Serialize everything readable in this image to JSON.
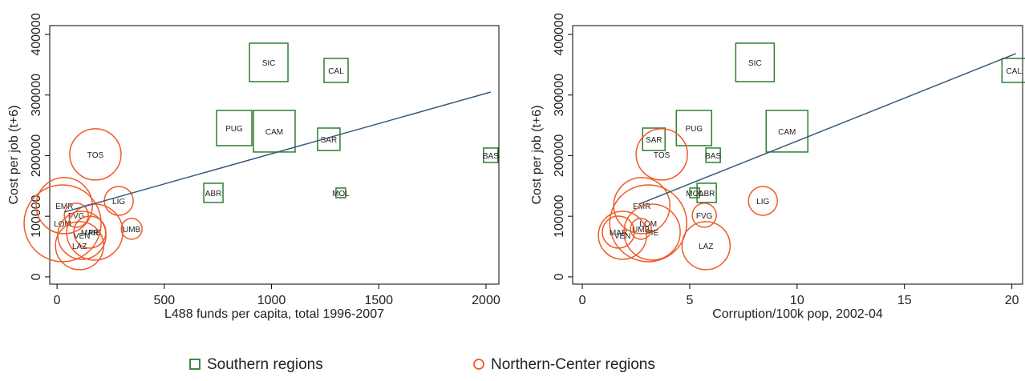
{
  "chart_data": [
    {
      "type": "scatter",
      "x_label": "L488 funds per capita, total 1996-2007",
      "y_label": "Cost per job (t+6)",
      "xlim": [
        -34,
        2060
      ],
      "ylim": [
        -12000,
        414500
      ],
      "xticks": [
        0,
        500,
        1000,
        1500,
        2000
      ],
      "yticks": [
        0,
        100000,
        200000,
        300000,
        400000
      ],
      "series": [
        {
          "name": "Southern regions",
          "color": "#2e7d32",
          "marker": "square",
          "labels": [
            "SIC",
            "CAL",
            "PUG",
            "CAM",
            "SAR",
            "BAS",
            "ABR",
            "MOL"
          ],
          "x": [
            987,
            1301,
            826,
            1013,
            1267,
            2022,
            729,
            1323
          ],
          "values": [
            353800,
            340600,
            245500,
            240300,
            227000,
            200700,
            138600,
            138600
          ],
          "sizes": [
            24,
            15,
            22,
            26,
            14,
            9,
            12,
            6
          ]
        },
        {
          "name": "Northern-Center regions",
          "color": "#f05a28",
          "marker": "circle",
          "labels": [
            "TOS",
            "LIG",
            "EMR",
            "FVG",
            "LOM",
            "UMB",
            "MAR",
            "PIE",
            "VEN",
            "LAZ"
          ],
          "x": [
            179,
            288,
            34,
            90,
            26,
            348,
            153,
            176,
            116,
            105
          ],
          "values": [
            202000,
            125400,
            117500,
            101700,
            88400,
            79200,
            73900,
            73900,
            68600,
            51500
          ],
          "sizes": [
            32,
            18,
            35,
            15,
            48,
            13,
            20,
            35,
            30,
            30
          ]
        }
      ],
      "fit": {
        "color": "#3b5a7a",
        "x": [
          34,
          2022
        ],
        "values": [
          106900,
          304900
        ]
      }
    },
    {
      "type": "scatter",
      "x_label": "Corruption/100k pop, 2002-04",
      "y_label": "Cost per job (t+6)",
      "xlim": [
        -0.45,
        20.5
      ],
      "ylim": [
        -12000,
        414500
      ],
      "xticks": [
        0,
        5,
        10,
        15,
        20
      ],
      "yticks": [
        0,
        100000,
        200000,
        300000,
        400000
      ],
      "series": [
        {
          "name": "Southern regions",
          "color": "#2e7d32",
          "marker": "square",
          "labels": [
            "SIC",
            "CAL",
            "PUG",
            "CAM",
            "SAR",
            "BAS",
            "ABR",
            "MOL"
          ],
          "x": [
            8.04,
            20.1,
            5.2,
            9.53,
            3.33,
            6.09,
            5.79,
            5.23
          ],
          "values": [
            353800,
            340600,
            245500,
            240300,
            227000,
            200700,
            138600,
            138600
          ],
          "sizes": [
            24,
            15,
            22,
            26,
            14,
            9,
            12,
            6
          ]
        },
        {
          "name": "Northern-Center regions",
          "color": "#f05a28",
          "marker": "circle",
          "labels": [
            "TOS",
            "LIG",
            "EMR",
            "FVG",
            "LOM",
            "UMB",
            "MAR",
            "PIE",
            "VEN",
            "LAZ"
          ],
          "x": [
            3.7,
            8.41,
            2.77,
            5.68,
            3.07,
            2.73,
            1.68,
            3.25,
            1.87,
            5.76
          ],
          "values": [
            202000,
            125400,
            117500,
            101700,
            88400,
            79200,
            73900,
            73900,
            68600,
            51500
          ],
          "sizes": [
            32,
            18,
            35,
            15,
            48,
            13,
            20,
            35,
            30,
            30
          ]
        }
      ],
      "fit": {
        "color": "#3b5a7a",
        "x": [
          2.65,
          20.19
        ],
        "values": [
          120100,
          368300
        ]
      }
    }
  ]
}
